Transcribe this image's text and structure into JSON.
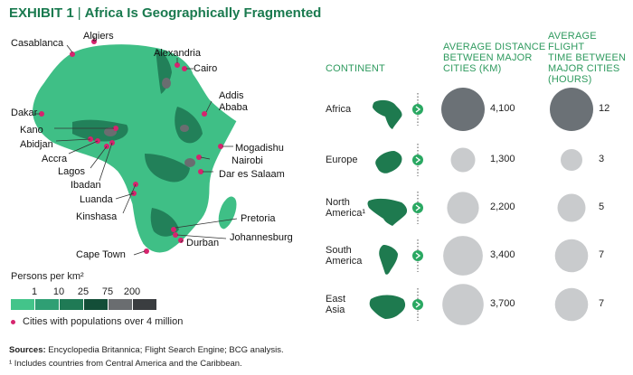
{
  "header": {
    "exhibit": "EXHIBIT 1",
    "separator": "|",
    "title": "Africa Is Geographically Fragmented"
  },
  "columns": {
    "continent": "CONTINENT",
    "distance": [
      "AVERAGE DISTANCE",
      "BETWEEN MAJOR",
      "CITIES (KM)"
    ],
    "flight": [
      "AVERAGE FLIGHT",
      "TIME BETWEEN",
      "MAJOR CITIES",
      "(HOURS)"
    ]
  },
  "chart_data": {
    "type": "bubble-table",
    "rows": [
      {
        "continent": [
          "Africa"
        ],
        "distance_km": 4100,
        "distance_label": "4,100",
        "flight_hours": 12,
        "flight_label": "12",
        "highlight": true
      },
      {
        "continent": [
          "Europe"
        ],
        "distance_km": 1300,
        "distance_label": "1,300",
        "flight_hours": 3,
        "flight_label": "3",
        "highlight": false
      },
      {
        "continent": [
          "North",
          "America¹"
        ],
        "distance_km": 2200,
        "distance_label": "2,200",
        "flight_hours": 5,
        "flight_label": "5",
        "highlight": false
      },
      {
        "continent": [
          "South",
          "America"
        ],
        "distance_km": 3400,
        "distance_label": "3,400",
        "flight_hours": 7,
        "flight_label": "7",
        "highlight": false
      },
      {
        "continent": [
          "East",
          "Asia"
        ],
        "distance_km": 3700,
        "distance_label": "3,700",
        "flight_hours": 7,
        "flight_label": "7",
        "highlight": false
      }
    ]
  },
  "map": {
    "cities": [
      "Algiers",
      "Casablanca",
      "Alexandria",
      "Cairo",
      "Addis",
      "Ababa",
      "Dakar",
      "Kano",
      "Abidjan",
      "Accra",
      "Lagos",
      "Ibadan",
      "Mogadishu",
      "Nairobi",
      "Dar es Salaam",
      "Luanda",
      "Kinshasa",
      "Pretoria",
      "Johannesburg",
      "Durban",
      "Cape Town"
    ]
  },
  "legend": {
    "title": "Persons per km²",
    "ticks": [
      "1",
      "10",
      "25",
      "75",
      "200"
    ],
    "colors": [
      "#43c48a",
      "#2f9f74",
      "#1f7a55",
      "#134e38",
      "#6a6d70",
      "#3a3d40"
    ],
    "cities_note": "Cities with populations over 4 million"
  },
  "footer": {
    "sources_label": "Sources:",
    "sources_text": " Encyclopedia Britannica; Flight Search Engine; BCG analysis.",
    "footnote": "¹ Includes countries from Central America and the Caribbean."
  },
  "colors": {
    "africa_bubble": "#6b7176",
    "other_bubble": "#c9cbcd",
    "brand_green": "#1a7a4f",
    "continent_green": "#1e7a4f",
    "arrow_green": "#2aa862",
    "city_dot": "#d6246e"
  }
}
